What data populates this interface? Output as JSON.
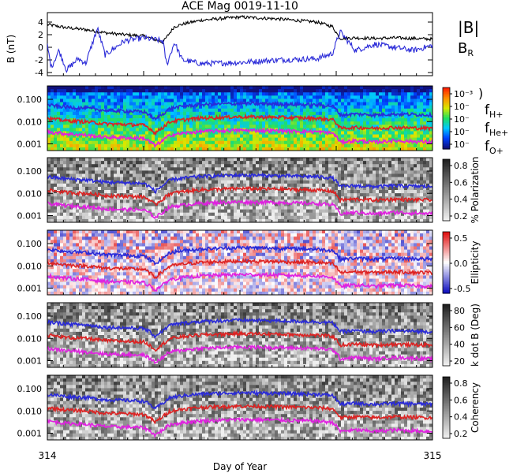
{
  "title": "ACE Mag 0019-11-10",
  "x_axis": {
    "label": "Day of Year",
    "tick_labels": [
      "314",
      "315"
    ]
  },
  "legends": {
    "mag": [
      {
        "text": "|B|",
        "color": "#000000"
      },
      {
        "text": "B",
        "sub": "R",
        "color": "#2a2ad8"
      }
    ],
    "freq": [
      {
        "text": "f",
        "sub": "H+",
        "color": "#2a2ad8"
      },
      {
        "text": "f",
        "sub": "He+",
        "color": "#dd2222"
      },
      {
        "text": "f",
        "sub": "O+",
        "color": "#e020e0"
      }
    ],
    "spec_top": ")"
  },
  "chart_data": [
    {
      "type": "line",
      "panel": "magnetic field",
      "ylabel": "B (nT)",
      "ylim": [
        -4.5,
        5.5
      ],
      "yticks": [
        4,
        2,
        0,
        -2,
        -4
      ],
      "xlim": [
        314,
        315
      ],
      "series": [
        {
          "name": "|B|",
          "color": "#000000",
          "x": [
            314.0,
            314.05,
            314.1,
            314.15,
            314.2,
            314.25,
            314.3,
            314.33,
            314.36,
            314.4,
            314.5,
            314.6,
            314.7,
            314.74,
            314.76,
            314.8,
            314.85,
            314.9,
            314.95,
            315.0
          ],
          "y": [
            3.6,
            3.1,
            2.8,
            2.3,
            2.0,
            1.8,
            0.8,
            3.3,
            3.8,
            4.3,
            4.8,
            4.5,
            4.0,
            3.3,
            1.4,
            1.5,
            1.4,
            1.5,
            1.4,
            1.3
          ]
        },
        {
          "name": "B_R",
          "color": "#2a2ad8",
          "x": [
            314.0,
            314.01,
            314.03,
            314.05,
            314.08,
            314.1,
            314.13,
            314.15,
            314.2,
            314.25,
            314.3,
            314.31,
            314.33,
            314.35,
            314.4,
            314.5,
            314.6,
            314.7,
            314.74,
            314.76,
            314.8,
            314.85,
            314.9,
            314.95,
            315.0
          ],
          "y": [
            0.3,
            -3.2,
            -0.5,
            -3.6,
            -1.8,
            -2.5,
            3.0,
            -1.2,
            1.0,
            1.5,
            1.0,
            -2.8,
            0.8,
            -2.0,
            -2.6,
            -2.4,
            -2.0,
            -1.8,
            -1.0,
            2.5,
            -0.5,
            0.5,
            0.0,
            -0.5,
            0.3
          ]
        }
      ]
    },
    {
      "type": "heatmap",
      "panel": "power spectrum",
      "ylabel": "",
      "ylim": [
        0.0005,
        0.4
      ],
      "yscale": "log",
      "yticks": [
        "0.100",
        "0.010",
        "0.001"
      ],
      "colorbar": {
        "tick_labels": [
          "10⁻³",
          "10⁻",
          "10⁻",
          "10⁻",
          "10⁻"
        ],
        "colors": [
          "#10107a",
          "#0040ff",
          "#00c8ff",
          "#20e060",
          "#d8e800",
          "#ff9000",
          "#ff2000"
        ]
      }
    },
    {
      "type": "heatmap",
      "panel": "polarization",
      "ylim": [
        0.0005,
        0.4
      ],
      "yscale": "log",
      "yticks": [
        "0.100",
        "0.010",
        "0.001"
      ],
      "colorbar": {
        "label": "% Polarization",
        "tick_labels": [
          "0.8",
          "0.6",
          "0.4",
          "0.2"
        ],
        "colors": [
          "#f0f0f0",
          "#202020"
        ]
      }
    },
    {
      "type": "heatmap",
      "panel": "ellipticity",
      "ylim": [
        0.0005,
        0.4
      ],
      "yscale": "log",
      "yticks": [
        "0.100",
        "0.010",
        "0.001"
      ],
      "colorbar": {
        "label": "Ellipticity",
        "tick_labels": [
          "0.5",
          "0.0",
          "-0.5"
        ],
        "colors": [
          "#1010c0",
          "#ffffff",
          "#e01010"
        ]
      }
    },
    {
      "type": "heatmap",
      "panel": "k dot B",
      "ylim": [
        0.0005,
        0.4
      ],
      "yscale": "log",
      "yticks": [
        "0.100",
        "0.010",
        "0.001"
      ],
      "colorbar": {
        "label": "k dot B (Deg)",
        "tick_labels": [
          "80",
          "60",
          "40",
          "20"
        ],
        "colors": [
          "#f0f0f0",
          "#202020"
        ]
      }
    },
    {
      "type": "heatmap",
      "panel": "coherency",
      "ylim": [
        0.0005,
        0.4
      ],
      "yscale": "log",
      "yticks": [
        "0.100",
        "0.010",
        "0.001"
      ],
      "colorbar": {
        "label": "Coherency",
        "tick_labels": [
          "0.8",
          "0.6",
          "0.4",
          "0.2"
        ],
        "colors": [
          "#f0f0f0",
          "#202020"
        ]
      }
    },
    {
      "type": "line",
      "panel": "gyrofrequency overlays (all spectral panels)",
      "xlim": [
        314,
        315
      ],
      "yscale": "log",
      "series": [
        {
          "name": "f_H+",
          "color": "#2a2ad8",
          "x": [
            314.0,
            314.05,
            314.1,
            314.15,
            314.2,
            314.25,
            314.28,
            314.3,
            314.32,
            314.36,
            314.4,
            314.5,
            314.6,
            314.7,
            314.74,
            314.76,
            314.8,
            314.85,
            314.9,
            314.95,
            315.0
          ],
          "y": [
            0.055,
            0.045,
            0.04,
            0.032,
            0.03,
            0.028,
            0.012,
            0.022,
            0.04,
            0.05,
            0.058,
            0.066,
            0.062,
            0.056,
            0.05,
            0.02,
            0.022,
            0.02,
            0.022,
            0.021,
            0.02
          ]
        },
        {
          "name": "f_He+",
          "color": "#dd2222",
          "x": [
            314.0,
            314.05,
            314.1,
            314.15,
            314.2,
            314.25,
            314.28,
            314.3,
            314.32,
            314.36,
            314.4,
            314.5,
            314.6,
            314.7,
            314.74,
            314.76,
            314.8,
            314.85,
            314.9,
            314.95,
            315.0
          ],
          "y": [
            0.014,
            0.011,
            0.01,
            0.008,
            0.0075,
            0.007,
            0.003,
            0.0055,
            0.01,
            0.0125,
            0.0145,
            0.0165,
            0.0155,
            0.014,
            0.0125,
            0.005,
            0.0055,
            0.005,
            0.0055,
            0.0052,
            0.005
          ]
        },
        {
          "name": "f_O+",
          "color": "#e020e0",
          "x": [
            314.0,
            314.05,
            314.1,
            314.15,
            314.2,
            314.25,
            314.28,
            314.3,
            314.32,
            314.36,
            314.4,
            314.5,
            314.6,
            314.7,
            314.74,
            314.76,
            314.8,
            314.85,
            314.9,
            314.95,
            315.0
          ],
          "y": [
            0.0035,
            0.0028,
            0.0025,
            0.002,
            0.0019,
            0.0018,
            0.0008,
            0.0014,
            0.0025,
            0.0031,
            0.0036,
            0.0041,
            0.0039,
            0.0035,
            0.0031,
            0.0012,
            0.0014,
            0.0012,
            0.0014,
            0.0013,
            0.0012
          ]
        }
      ]
    }
  ]
}
